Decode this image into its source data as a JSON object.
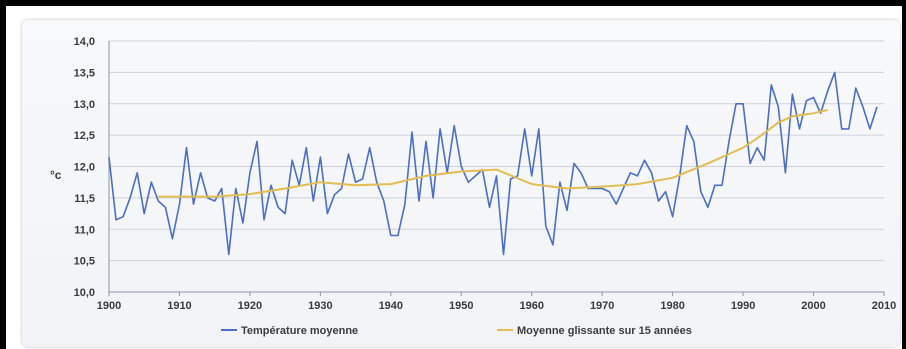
{
  "chart_data": {
    "type": "line",
    "xlabel": "",
    "ylabel": "°c",
    "xlim": [
      1900,
      2010
    ],
    "ylim": [
      10.0,
      14.0
    ],
    "x_ticks": [
      1900,
      1910,
      1920,
      1930,
      1940,
      1950,
      1960,
      1970,
      1980,
      1990,
      2000,
      2010
    ],
    "y_ticks": [
      "10,0",
      "10,5",
      "11,0",
      "11,5",
      "12,0",
      "12,5",
      "13,0",
      "13,5",
      "14,0"
    ],
    "grid": "horizontal",
    "legend_position": "bottom",
    "series": [
      {
        "name": "Température moyenne",
        "color": "#4a6fc6",
        "x": [
          1900,
          1901,
          1902,
          1903,
          1904,
          1905,
          1906,
          1907,
          1908,
          1909,
          1910,
          1911,
          1912,
          1913,
          1914,
          1915,
          1916,
          1917,
          1918,
          1919,
          1920,
          1921,
          1922,
          1923,
          1924,
          1925,
          1926,
          1927,
          1928,
          1929,
          1930,
          1931,
          1932,
          1933,
          1934,
          1935,
          1936,
          1937,
          1938,
          1939,
          1940,
          1941,
          1942,
          1943,
          1944,
          1945,
          1946,
          1947,
          1948,
          1949,
          1950,
          1951,
          1952,
          1953,
          1954,
          1955,
          1956,
          1957,
          1958,
          1959,
          1960,
          1961,
          1962,
          1963,
          1964,
          1965,
          1966,
          1967,
          1968,
          1969,
          1970,
          1971,
          1972,
          1973,
          1974,
          1975,
          1976,
          1977,
          1978,
          1979,
          1980,
          1981,
          1982,
          1983,
          1984,
          1985,
          1986,
          1987,
          1988,
          1989,
          1990,
          1991,
          1992,
          1993,
          1994,
          1995,
          1996,
          1997,
          1998,
          1999,
          2000,
          2001,
          2002,
          2003,
          2004,
          2005,
          2006,
          2007,
          2008,
          2009
        ],
        "values": [
          12.15,
          11.15,
          11.2,
          11.5,
          11.9,
          11.25,
          11.75,
          11.45,
          11.35,
          10.85,
          11.4,
          12.3,
          11.4,
          11.9,
          11.5,
          11.45,
          11.65,
          10.6,
          11.65,
          11.1,
          11.9,
          12.4,
          11.15,
          11.7,
          11.35,
          11.25,
          12.1,
          11.7,
          12.3,
          11.45,
          12.15,
          11.25,
          11.55,
          11.65,
          12.2,
          11.75,
          11.8,
          12.3,
          11.75,
          11.45,
          10.9,
          10.9,
          11.4,
          12.55,
          11.45,
          12.4,
          11.5,
          12.6,
          11.9,
          12.65,
          12.0,
          11.75,
          11.85,
          11.95,
          11.35,
          11.85,
          10.6,
          11.8,
          11.85,
          12.6,
          11.85,
          12.6,
          11.05,
          10.75,
          11.75,
          11.3,
          12.05,
          11.9,
          11.65,
          11.65,
          11.65,
          11.6,
          11.4,
          11.65,
          11.9,
          11.85,
          12.1,
          11.9,
          11.45,
          11.6,
          11.2,
          11.85,
          12.65,
          12.4,
          11.6,
          11.35,
          11.7,
          11.7,
          12.4,
          13.0,
          13.0,
          12.05,
          12.3,
          12.1,
          13.3,
          12.95,
          11.9,
          13.15,
          12.6,
          13.05,
          13.1,
          12.85,
          13.2,
          13.5,
          12.6,
          12.6,
          13.25,
          12.95,
          12.6,
          12.95
        ]
      },
      {
        "name": "Moyenne glissante sur 15 années",
        "color": "#e2bd52",
        "x": [
          1907,
          1910,
          1915,
          1920,
          1925,
          1930,
          1935,
          1940,
          1945,
          1950,
          1955,
          1960,
          1965,
          1970,
          1975,
          1980,
          1985,
          1988,
          1990,
          1992,
          1995,
          1997,
          2000,
          2002
        ],
        "values": [
          11.52,
          11.52,
          11.52,
          11.56,
          11.65,
          11.75,
          11.7,
          11.72,
          11.85,
          11.92,
          11.95,
          11.72,
          11.65,
          11.68,
          11.72,
          11.82,
          12.05,
          12.2,
          12.3,
          12.45,
          12.7,
          12.8,
          12.85,
          12.9
        ]
      }
    ]
  }
}
